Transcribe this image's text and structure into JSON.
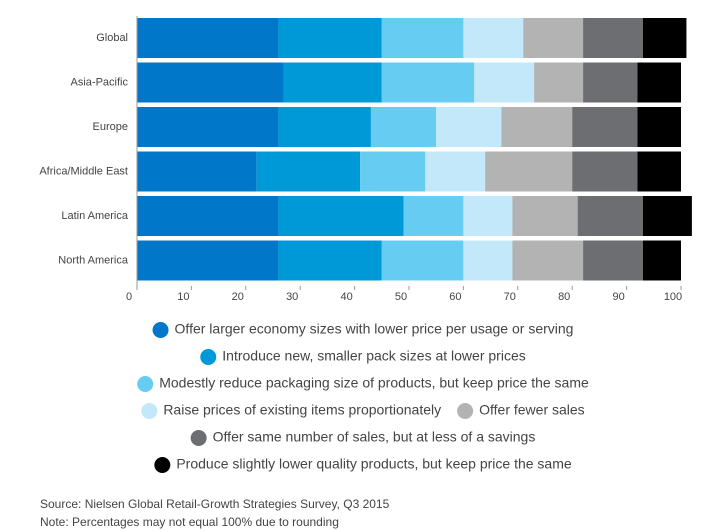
{
  "chart_data": {
    "type": "stacked-bar-horizontal",
    "categories": [
      "Global",
      "Asia-Pacific",
      "Europe",
      "Africa/Middle East",
      "Latin America",
      "North America"
    ],
    "series": [
      {
        "name": "Offer larger economy sizes with lower price per usage or serving",
        "color": "#0077c8",
        "values": [
          26,
          27,
          26,
          22,
          26,
          26
        ]
      },
      {
        "name": "Introduce new, smaller pack sizes at lower prices",
        "color": "#0099d8",
        "values": [
          19,
          18,
          17,
          19,
          23,
          19
        ]
      },
      {
        "name": "Modestly reduce packaging size of products, but keep price the same",
        "color": "#66ccf2",
        "values": [
          15,
          17,
          12,
          12,
          11,
          15
        ]
      },
      {
        "name": "Raise prices of existing items proportionately",
        "color": "#c2e8fa",
        "values": [
          11,
          11,
          12,
          11,
          9,
          9
        ]
      },
      {
        "name": "Offer fewer sales",
        "color": "#b3b3b3",
        "values": [
          11,
          9,
          13,
          16,
          12,
          13
        ]
      },
      {
        "name": "Offer same number of sales, but at less of a savings",
        "color": "#6d6e71",
        "values": [
          11,
          10,
          12,
          12,
          12,
          11
        ]
      },
      {
        "name": "Produce slightly lower quality products, but keep price the same",
        "color": "#000000",
        "values": [
          8,
          8,
          8,
          8,
          9,
          7
        ]
      }
    ],
    "xlim": [
      0,
      102
    ],
    "xticks": [
      0,
      10,
      20,
      30,
      40,
      50,
      60,
      70,
      80,
      90,
      100
    ],
    "source": "Source: Nielsen Global Retail-Growth Strategies Survey, Q3 2015",
    "note": "Note: Percentages may not equal 100% due to rounding"
  }
}
